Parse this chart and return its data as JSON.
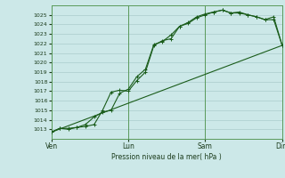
{
  "background_color": "#cce8e8",
  "plot_bg_color": "#cce8e8",
  "grid_color": "#aacccc",
  "line_color": "#1a5c1a",
  "marker_color": "#1a5c1a",
  "xlabel": "Pression niveau de la mer( hPa )",
  "ylim": [
    1012.0,
    1026.0
  ],
  "yticks": [
    1013,
    1014,
    1015,
    1016,
    1017,
    1018,
    1019,
    1020,
    1021,
    1022,
    1023,
    1024,
    1025
  ],
  "day_labels": [
    "Ven",
    "Lun",
    "Sam",
    "Dim"
  ],
  "day_positions": [
    0,
    3,
    6,
    9
  ],
  "xlim": [
    0,
    9
  ],
  "line1_x": [
    0.0,
    0.33,
    0.67,
    1.0,
    1.33,
    1.67,
    2.0,
    2.33,
    2.67,
    3.0,
    3.33,
    3.67,
    4.0,
    4.33,
    4.67,
    5.0,
    5.33,
    5.67,
    6.0,
    6.33,
    6.67,
    7.0,
    7.33,
    7.67,
    8.0,
    8.33,
    8.67,
    9.0
  ],
  "line1_y": [
    1012.7,
    1013.1,
    1013.1,
    1013.2,
    1013.5,
    1014.3,
    1014.8,
    1015.0,
    1016.8,
    1017.2,
    1018.5,
    1019.3,
    1021.9,
    1022.2,
    1022.9,
    1023.8,
    1024.2,
    1024.8,
    1025.1,
    1025.3,
    1025.5,
    1025.2,
    1025.3,
    1025.0,
    1024.8,
    1024.5,
    1024.8,
    1021.8
  ],
  "line2_x": [
    0.0,
    0.33,
    0.67,
    1.0,
    1.33,
    1.67,
    2.0,
    2.33,
    2.67,
    3.0,
    3.33,
    3.67,
    4.0,
    4.33,
    4.67,
    5.0,
    5.33,
    5.67,
    6.0,
    6.33,
    6.67,
    7.0,
    7.33,
    7.67,
    8.0,
    8.33,
    8.67,
    9.0
  ],
  "line2_y": [
    1012.7,
    1013.1,
    1013.0,
    1013.2,
    1013.3,
    1013.5,
    1015.0,
    1016.9,
    1017.1,
    1017.0,
    1018.1,
    1019.0,
    1021.8,
    1022.3,
    1022.5,
    1023.8,
    1024.1,
    1024.7,
    1025.0,
    1025.3,
    1025.5,
    1025.2,
    1025.2,
    1025.0,
    1024.8,
    1024.5,
    1024.5,
    1021.8
  ],
  "line3_x": [
    0.0,
    9.0
  ],
  "line3_y": [
    1012.7,
    1021.8
  ]
}
